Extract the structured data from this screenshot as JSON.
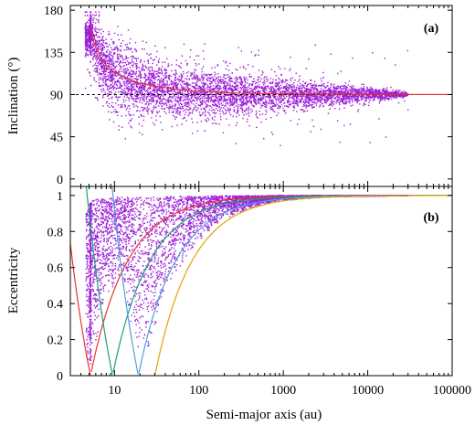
{
  "chart_data": [
    {
      "type": "scatter",
      "panel_label": "(a)",
      "ylabel": "Inclination (°)",
      "xlabel": "",
      "xscale": "log",
      "xlim": [
        3,
        100000
      ],
      "ylim": [
        -8,
        185
      ],
      "y_ticks": [
        "0",
        "45",
        "90",
        "135",
        "180"
      ],
      "y_tick_values": [
        0,
        45,
        90,
        135,
        180
      ],
      "reference_line": {
        "y": 90,
        "style": "dashed",
        "color": "#000000"
      },
      "trend_curve": {
        "color": "#e8342c",
        "x": [
          5.2,
          5.5,
          6,
          7,
          8,
          10,
          15,
          20,
          30,
          50,
          80,
          150,
          300,
          1000,
          3000,
          10000,
          100000
        ],
        "y": [
          160,
          150,
          140,
          128,
          121,
          114,
          106,
          102,
          99,
          96,
          94,
          92.5,
          91.5,
          90.8,
          90.4,
          90.2,
          90
        ]
      },
      "point_density_profile": {
        "x": [
          4.5,
          5,
          5.2,
          6,
          8,
          10,
          15,
          20,
          30,
          50,
          80,
          120,
          200,
          300,
          500,
          1000,
          2000,
          5000,
          10000,
          20000,
          30000
        ],
        "y_center": [
          150,
          152,
          155,
          140,
          120,
          113,
          104,
          100,
          96,
          93,
          92,
          91,
          91,
          90.5,
          90.5,
          90,
          90,
          90,
          90,
          90,
          90
        ],
        "y_spread": [
          9,
          9,
          8,
          18,
          18,
          20,
          18,
          17,
          15,
          14,
          14,
          13,
          12,
          11,
          10,
          9,
          7,
          5,
          4,
          2,
          1
        ]
      },
      "point_color": "#9b1fd6",
      "grid": false
    },
    {
      "type": "scatter",
      "panel_label": "(b)",
      "ylabel": "Eccentricity",
      "xlabel": "Semi-major axis (au)",
      "xscale": "log",
      "xlim": [
        3,
        100000
      ],
      "ylim": [
        0,
        1.05
      ],
      "x_ticks": [
        "10",
        "100",
        "1000",
        "10000",
        "100000"
      ],
      "x_tick_values": [
        10,
        100,
        1000,
        10000,
        100000
      ],
      "y_ticks": [
        "0",
        "0.2",
        "0.4",
        "0.6",
        "0.8",
        "1"
      ],
      "y_tick_values": [
        0,
        0.2,
        0.4,
        0.6,
        0.8,
        1
      ],
      "curves": [
        {
          "color": "#e8342c",
          "kind": "perihelion",
          "q": 5.2
        },
        {
          "color": "#e8342c",
          "kind": "aphelion",
          "Q": 5.2
        },
        {
          "color": "#1a9e80",
          "kind": "perihelion",
          "q": 9.5
        },
        {
          "color": "#1a9e80",
          "kind": "aphelion",
          "Q": 9.5
        },
        {
          "color": "#4f9fe0",
          "kind": "perihelion",
          "q": 19.2
        },
        {
          "color": "#4f9fe0",
          "kind": "aphelion",
          "Q": 19.2
        },
        {
          "color": "#e6a100",
          "kind": "perihelion",
          "q": 30.1
        }
      ],
      "point_density_profile": {
        "x": [
          4.6,
          5,
          5.5,
          6,
          7,
          8,
          10,
          12,
          15,
          20,
          25,
          30,
          50,
          100,
          200,
          500,
          1000,
          3000,
          10000,
          30000
        ],
        "e_low": [
          0.1,
          0.0,
          0.05,
          0.15,
          0.3,
          0.4,
          0.5,
          0.55,
          0.3,
          0.1,
          0.1,
          0.25,
          0.55,
          0.75,
          0.87,
          0.94,
          0.97,
          0.99,
          0.995,
          0.999
        ],
        "e_high": [
          0.9,
          0.95,
          0.97,
          0.98,
          0.98,
          0.98,
          0.99,
          0.99,
          0.99,
          0.99,
          0.99,
          0.99,
          0.995,
          0.998,
          0.999,
          0.999,
          1,
          1,
          1,
          1
        ]
      },
      "point_color": "#9b1fd6",
      "grid": false
    }
  ]
}
